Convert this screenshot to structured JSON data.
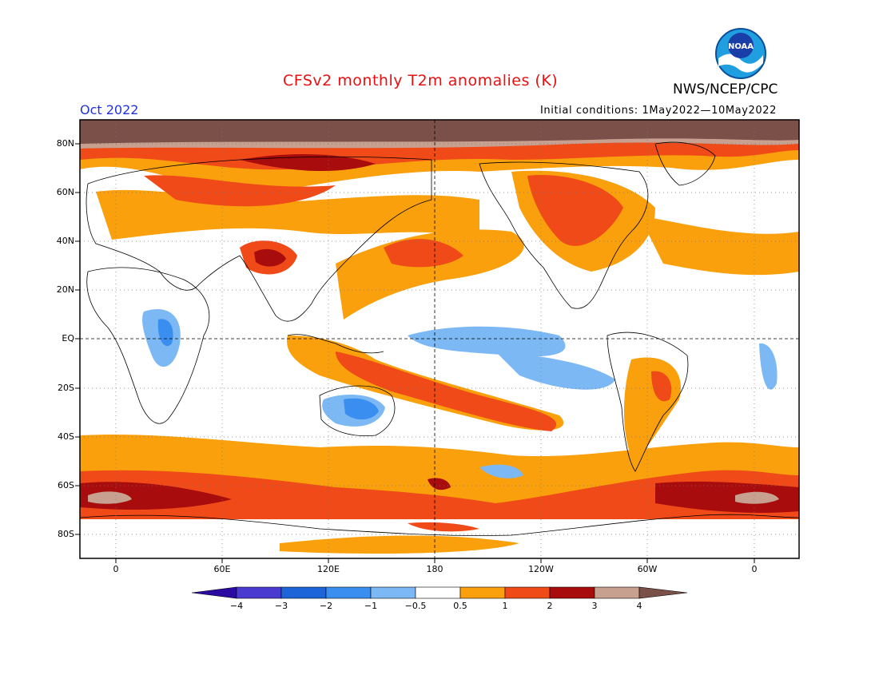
{
  "header": {
    "title": "CFSv2 monthly T2m anomalies (K)",
    "agency": "NWS/NCEP/CPC",
    "logo_text": "NOAA",
    "period": "Oct 2022",
    "initial_conditions": "Initial conditions: 1May2022—10May2022"
  },
  "map": {
    "lat_labels": [
      "80N",
      "60N",
      "40N",
      "20N",
      "EQ",
      "20S",
      "40S",
      "60S",
      "80S"
    ],
    "lon_labels": [
      "0",
      "60E",
      "120E",
      "180",
      "120W",
      "60W",
      "0"
    ]
  },
  "colorbar": {
    "labels": [
      "−4",
      "−3",
      "−2",
      "−1",
      "−0.5",
      "0.5",
      "1",
      "2",
      "3",
      "4"
    ],
    "colors": [
      "#2a0aa0",
      "#4a3ad0",
      "#1c64d8",
      "#3a8ef0",
      "#7cb8f4",
      "#ffffff",
      "#f9a00c",
      "#ef4a18",
      "#a80c0c",
      "#c8a090",
      "#7a5048"
    ]
  },
  "colors": {
    "title": "#e81010",
    "period": "#2233dd",
    "warm_05_1": "#f9a00c",
    "warm_1_2": "#ef4a18",
    "warm_2_3": "#a80c0c",
    "warm_3_4": "#c8a090",
    "warm_4plus": "#7a5048",
    "cool_05_1": "#7cb8f4",
    "cool_1_2": "#3a8ef0"
  }
}
